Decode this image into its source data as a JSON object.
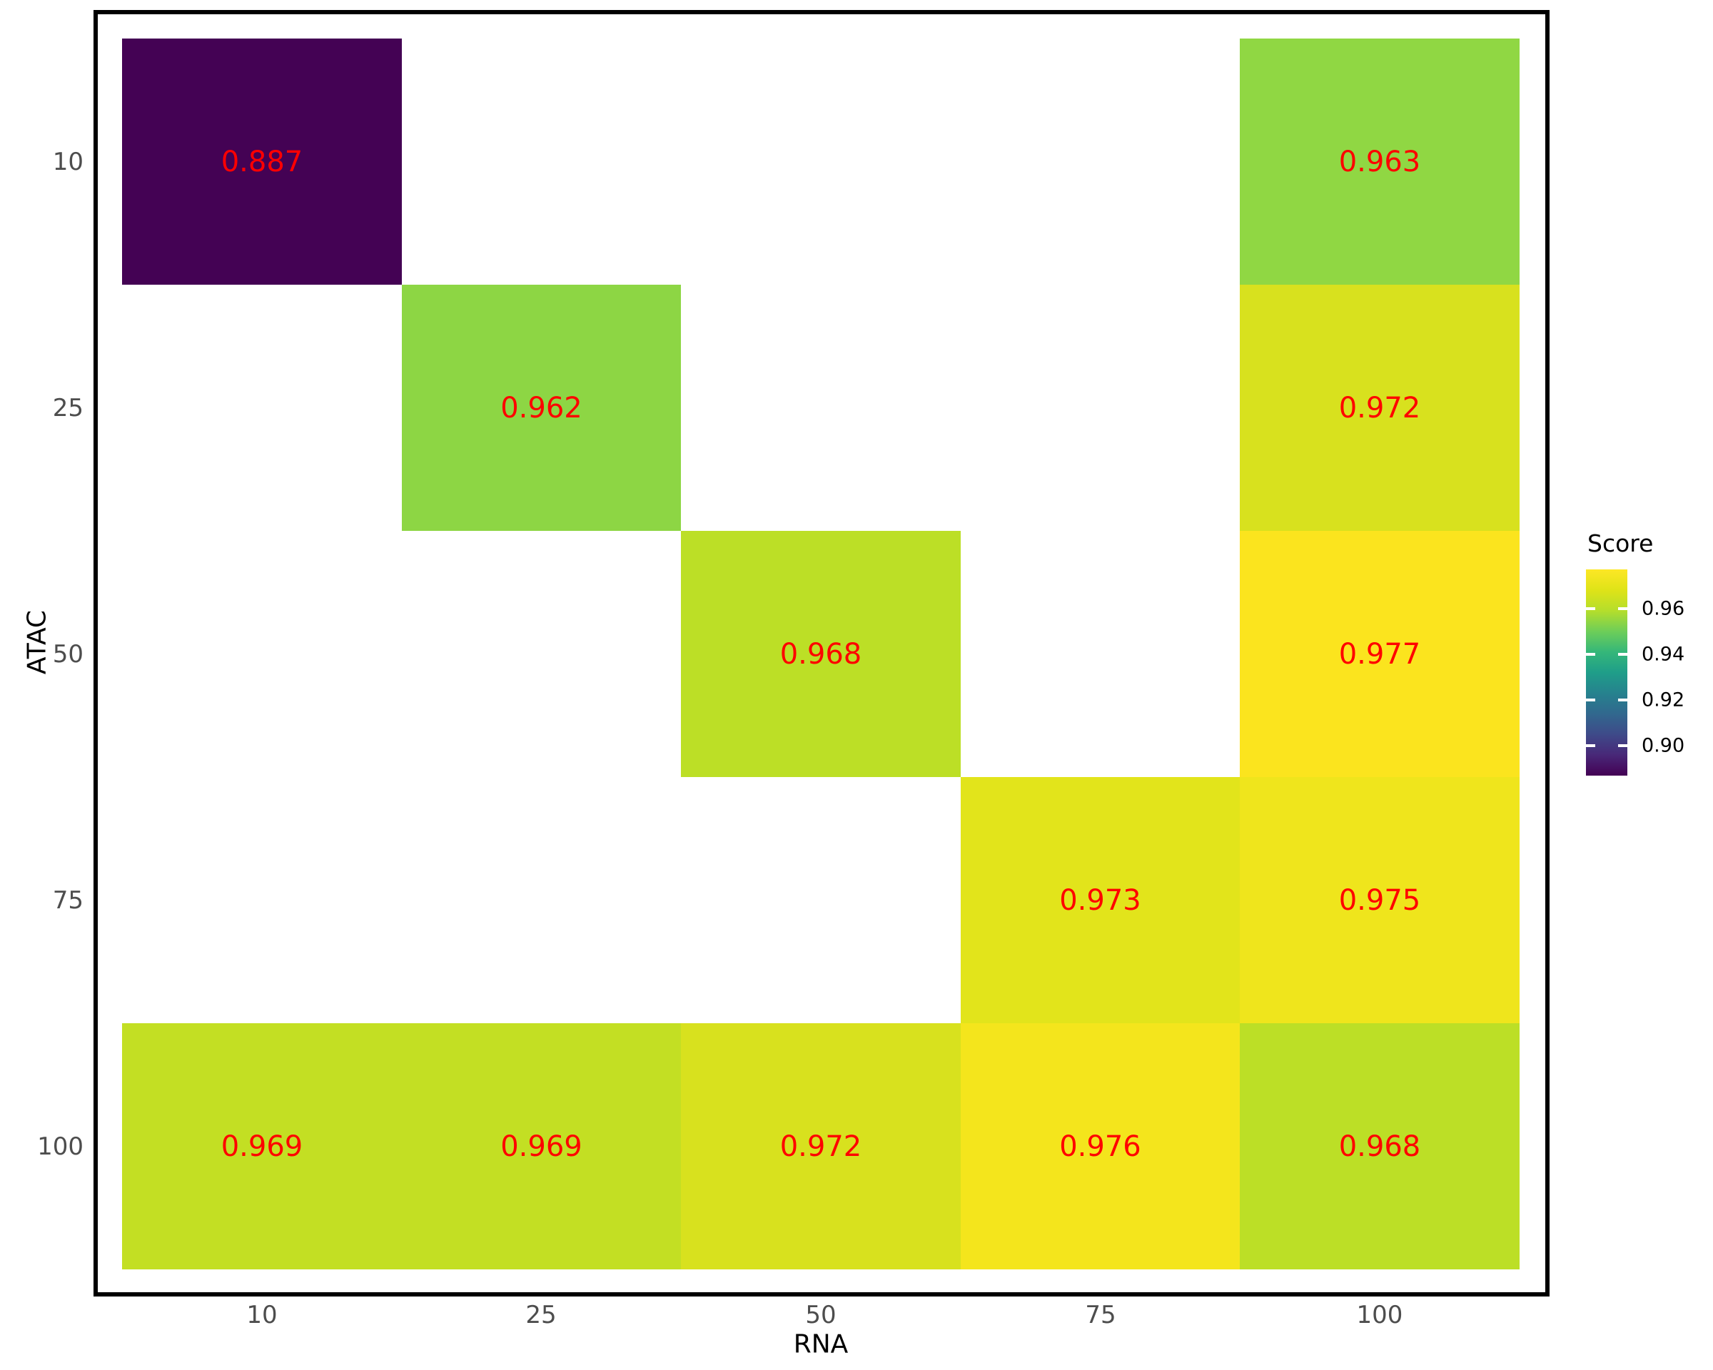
{
  "chart_data": {
    "type": "heatmap",
    "title": "",
    "xlabel": "RNA",
    "ylabel": "ATAC",
    "x_categories": [
      "10",
      "25",
      "50",
      "75",
      "100"
    ],
    "y_categories": [
      "10",
      "25",
      "50",
      "75",
      "100"
    ],
    "value_label_color": "#ff0000",
    "grid": false,
    "missing_cell_color": "#ffffff",
    "cells": [
      {
        "row": 0,
        "col": 0,
        "x": "10",
        "y": "10",
        "value": "0.887",
        "color": "#440254"
      },
      {
        "row": 0,
        "col": 4,
        "x": "100",
        "y": "10",
        "value": "0.963",
        "color": "#90d743"
      },
      {
        "row": 1,
        "col": 1,
        "x": "25",
        "y": "25",
        "value": "0.962",
        "color": "#8dd644"
      },
      {
        "row": 1,
        "col": 4,
        "x": "100",
        "y": "25",
        "value": "0.972",
        "color": "#d8e11e"
      },
      {
        "row": 2,
        "col": 2,
        "x": "50",
        "y": "50",
        "value": "0.968",
        "color": "#bcdf26"
      },
      {
        "row": 2,
        "col": 4,
        "x": "100",
        "y": "50",
        "value": "0.977",
        "color": "#fbe41e"
      },
      {
        "row": 3,
        "col": 3,
        "x": "75",
        "y": "75",
        "value": "0.973",
        "color": "#e2e41b"
      },
      {
        "row": 3,
        "col": 4,
        "x": "100",
        "y": "75",
        "value": "0.975",
        "color": "#efe51c"
      },
      {
        "row": 4,
        "col": 0,
        "x": "10",
        "y": "100",
        "value": "0.969",
        "color": "#c3df23"
      },
      {
        "row": 4,
        "col": 1,
        "x": "25",
        "y": "100",
        "value": "0.969",
        "color": "#c3df23"
      },
      {
        "row": 4,
        "col": 2,
        "x": "50",
        "y": "100",
        "value": "0.972",
        "color": "#d8e11e"
      },
      {
        "row": 4,
        "col": 3,
        "x": "75",
        "y": "100",
        "value": "0.976",
        "color": "#f4e51c"
      },
      {
        "row": 4,
        "col": 4,
        "x": "100",
        "y": "100",
        "value": "0.968",
        "color": "#bcdf26"
      }
    ],
    "legend": {
      "title": "Score",
      "position": "right",
      "limits": [
        0.887,
        0.977
      ],
      "ticks": [
        {
          "label": "0.96",
          "value": 0.96
        },
        {
          "label": "0.94",
          "value": 0.94
        },
        {
          "label": "0.92",
          "value": 0.92
        },
        {
          "label": "0.90",
          "value": 0.9
        }
      ],
      "gradient_top_to_bottom": [
        "#fde725",
        "#dfe318",
        "#b5de2b",
        "#6ece58",
        "#35b779",
        "#1f9e89",
        "#26828e",
        "#31688e",
        "#3e4a89",
        "#482878",
        "#440154"
      ]
    }
  }
}
